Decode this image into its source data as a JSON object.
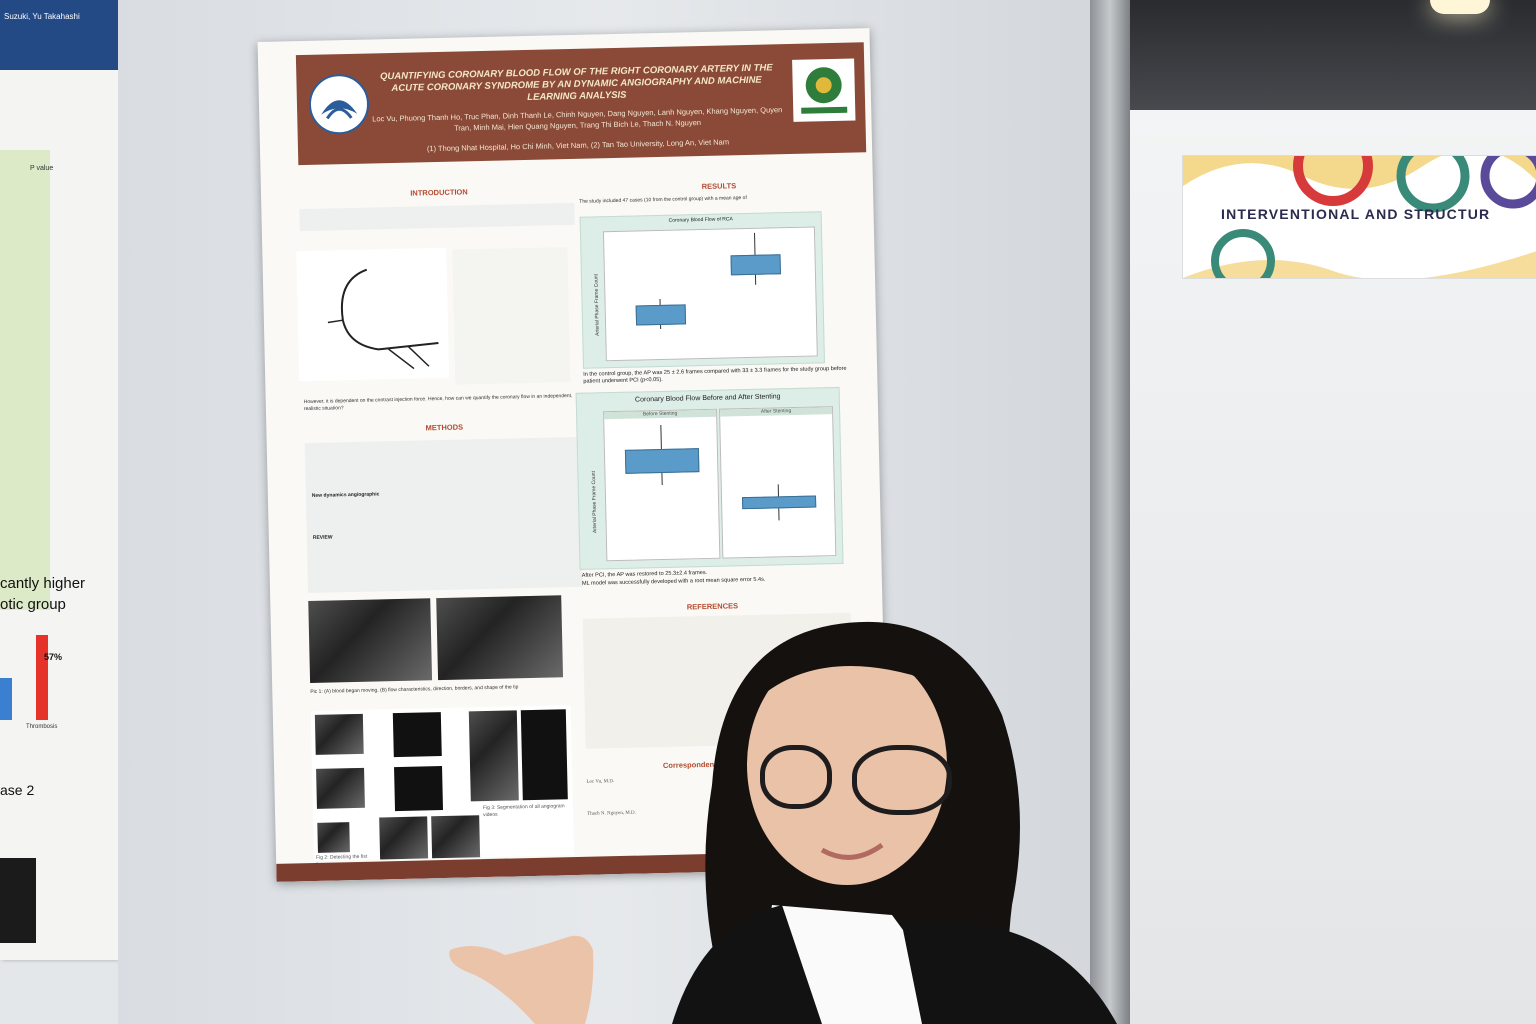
{
  "background_banner": {
    "text": "INTERVENTIONAL AND STRUCTUR"
  },
  "left_poster": {
    "header_fragment": "Suzuki, Yu Takahashi",
    "text_fragments": [
      "cantly higher",
      "otic group",
      "57%",
      "ase 2",
      "Thrombosis",
      "P value"
    ]
  },
  "poster": {
    "title": "QUANTIFYING CORONARY BLOOD FLOW OF THE RIGHT CORONARY ARTERY IN THE ACUTE CORONARY SYNDROME BY AN DYNAMIC ANGIOGRAPHY AND MACHINE LEARNING ANALYSIS",
    "authors": "Loc Vu, Phuong Thanh Ho, Truc Phan, Dinh Thanh Le, Chinh Nguyen, Dang Nguyen, Lanh Nguyen, Khang Nguyen, Quyen Tran, Minh Mai, Hien Quang Nguyen, Trang Thi Bich Le, Thach N. Nguyen",
    "affiliations": "(1) Thong Nhat Hospital, Ho Chi Minh, Viet Nam, (2) Tan Tao University, Long An, Viet Nam",
    "sections": {
      "introduction": "INTRODUCTION",
      "methods": "METHODS",
      "results": "RESULTS",
      "references": "REFERENCES",
      "correspondence": "Correspondence Authors/Co"
    },
    "intro_question": "However, it is dependent on the contrast injection force. Hence, how can we quantify the coronary flow in an independent, realistic situation?",
    "results_text_1": "The study included 47 cases (10 from the control group) with a mean age of",
    "results_text_2": "In the control group, the AP was 25 ± 2.6 frames compared with 33 ± 3.3 frames for the study group before patient underwent PCI (p<0.05).",
    "results_text_3": "After PCI, the AP was restored to 25.3±2.4 frames.",
    "results_text_4": "ML model was successfully developed with a root mean square error 5.4s.",
    "fig_caption_1": "Pic 1: (A) blood began moving, (B) flow characteristics, direction, borders, and shape of the tip",
    "fig_caption_3": "Fig 3: Segmentation of all angiogram videos",
    "fig_caption_2": "Fig 2: Detecting the fist frame",
    "correspondence_name_1": "Loc Vu, M.D.",
    "correspondence_name_2": "Thach N. Nguyen, M.D.",
    "methods_bold": "New dynamics angiographic",
    "review_label": "REVIEW"
  },
  "chart_1": {
    "title": "Coronary Blood Flow of RCA",
    "ylabel": "Arterial Phase Frame Count"
  },
  "chart_2": {
    "title": "Coronary Blood Flow Before and After Stenting",
    "panel_1": "Before Stenting",
    "panel_2": "After Stenting",
    "ylabel": "Arterial Phase Frame Count"
  },
  "colors": {
    "poster_header": "#8a4a37",
    "box_fill": "#5b9bc9",
    "chart_bg": "#ddeee8"
  }
}
